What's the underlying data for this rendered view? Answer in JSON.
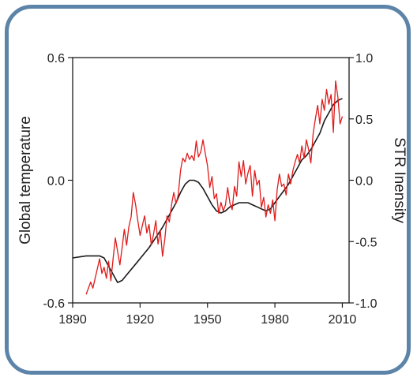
{
  "colors": {
    "frame": "#5c84a8",
    "plot_border": "#1a1a1a",
    "temperature": "#1a1a1a",
    "str": "#e01a1a"
  },
  "chart_data": {
    "type": "line",
    "title": "",
    "xlabel": "",
    "ylabel": "Global temperature",
    "ylabel_right": "STR Inensity",
    "xlim": [
      1890,
      2013
    ],
    "ylim": [
      -0.6,
      0.6
    ],
    "ylim_right": [
      -1.0,
      1.0
    ],
    "x_ticks": [
      1890,
      1920,
      1950,
      1980,
      2010
    ],
    "x_tick_labels": [
      "1890",
      "1920",
      "1950",
      "1980",
      "2010"
    ],
    "y_ticks": [
      -0.6,
      0.0,
      0.6
    ],
    "y_tick_labels": [
      "-0.6",
      "0.0",
      "0.6"
    ],
    "y_ticks_right": [
      -1.0,
      -0.5,
      0.0,
      0.5,
      1.0
    ],
    "y_tick_labels_right": [
      "-1.0",
      "-0.5",
      "0.0",
      "0.5",
      "1.0"
    ],
    "grid": false,
    "legend": "none",
    "series": [
      {
        "axis": "left",
        "color": "#1a1a1a",
        "x": [
          1890,
          1893,
          1896,
          1899,
          1902,
          1904,
          1906,
          1908,
          1910,
          1912,
          1915,
          1918,
          1921,
          1924,
          1927,
          1930,
          1933,
          1936,
          1938,
          1940,
          1942,
          1944,
          1946,
          1948,
          1950,
          1952,
          1954,
          1956,
          1958,
          1960,
          1962,
          1964,
          1966,
          1968,
          1970,
          1972,
          1974,
          1976,
          1978,
          1980,
          1982,
          1984,
          1986,
          1988,
          1990,
          1992,
          1994,
          1996,
          1998,
          2000,
          2002,
          2004,
          2006,
          2008,
          2010
        ],
        "y": [
          -0.38,
          -0.375,
          -0.37,
          -0.37,
          -0.37,
          -0.38,
          -0.42,
          -0.46,
          -0.5,
          -0.49,
          -0.45,
          -0.41,
          -0.37,
          -0.33,
          -0.28,
          -0.23,
          -0.17,
          -0.11,
          -0.06,
          -0.02,
          0.0,
          0.0,
          -0.01,
          -0.04,
          -0.08,
          -0.12,
          -0.15,
          -0.16,
          -0.15,
          -0.13,
          -0.12,
          -0.11,
          -0.11,
          -0.11,
          -0.12,
          -0.13,
          -0.14,
          -0.15,
          -0.14,
          -0.11,
          -0.08,
          -0.05,
          -0.02,
          0.02,
          0.06,
          0.1,
          0.12,
          0.15,
          0.19,
          0.23,
          0.29,
          0.33,
          0.37,
          0.39,
          0.4
        ]
      },
      {
        "axis": "right",
        "color": "#e01a1a",
        "x": [
          1896,
          1898,
          1899,
          1901,
          1902,
          1903,
          1904,
          1905,
          1906,
          1907,
          1908,
          1909,
          1910,
          1911,
          1912,
          1913,
          1914,
          1915,
          1916,
          1917,
          1918,
          1919,
          1920,
          1921,
          1922,
          1923,
          1924,
          1925,
          1926,
          1927,
          1928,
          1929,
          1930,
          1931,
          1932,
          1933,
          1934,
          1935,
          1936,
          1937,
          1938,
          1939,
          1940,
          1941,
          1942,
          1943,
          1944,
          1945,
          1946,
          1947,
          1948,
          1949,
          1950,
          1951,
          1952,
          1953,
          1954,
          1955,
          1956,
          1957,
          1958,
          1959,
          1960,
          1961,
          1962,
          1963,
          1964,
          1965,
          1966,
          1967,
          1968,
          1969,
          1970,
          1971,
          1972,
          1973,
          1974,
          1975,
          1976,
          1977,
          1978,
          1979,
          1980,
          1981,
          1982,
          1983,
          1984,
          1985,
          1986,
          1987,
          1988,
          1989,
          1990,
          1991,
          1992,
          1993,
          1994,
          1995,
          1996,
          1997,
          1998,
          1999,
          2000,
          2001,
          2002,
          2003,
          2004,
          2005,
          2006,
          2007,
          2008,
          2009,
          2010
        ],
        "y": [
          -0.93,
          -0.83,
          -0.88,
          -0.72,
          -0.64,
          -0.76,
          -0.71,
          -0.8,
          -0.66,
          -0.82,
          -0.64,
          -0.47,
          -0.58,
          -0.69,
          -0.55,
          -0.4,
          -0.53,
          -0.38,
          -0.3,
          -0.1,
          -0.2,
          -0.33,
          -0.45,
          -0.37,
          -0.29,
          -0.43,
          -0.36,
          -0.53,
          -0.44,
          -0.33,
          -0.52,
          -0.41,
          -0.62,
          -0.48,
          -0.29,
          -0.34,
          -0.2,
          -0.1,
          -0.19,
          -0.12,
          0.08,
          0.18,
          0.15,
          0.22,
          0.17,
          0.2,
          0.16,
          0.32,
          0.19,
          0.23,
          0.33,
          0.22,
          0.12,
          -0.06,
          0.03,
          -0.15,
          -0.11,
          -0.27,
          -0.18,
          -0.25,
          -0.2,
          -0.06,
          -0.19,
          -0.24,
          -0.05,
          -0.13,
          0.15,
          0.03,
          0.16,
          -0.03,
          0.06,
          0.12,
          -0.13,
          0.08,
          -0.04,
          0.0,
          -0.22,
          -0.14,
          -0.3,
          -0.2,
          -0.27,
          -0.16,
          -0.33,
          -0.08,
          0.05,
          -0.05,
          -0.03,
          -0.12,
          0.05,
          -0.03,
          0.08,
          0.15,
          0.21,
          0.14,
          0.28,
          0.18,
          0.33,
          0.25,
          0.14,
          0.38,
          0.5,
          0.61,
          0.46,
          0.66,
          0.57,
          0.74,
          0.62,
          0.7,
          0.39,
          0.81,
          0.68,
          0.46,
          0.52
        ]
      }
    ]
  }
}
